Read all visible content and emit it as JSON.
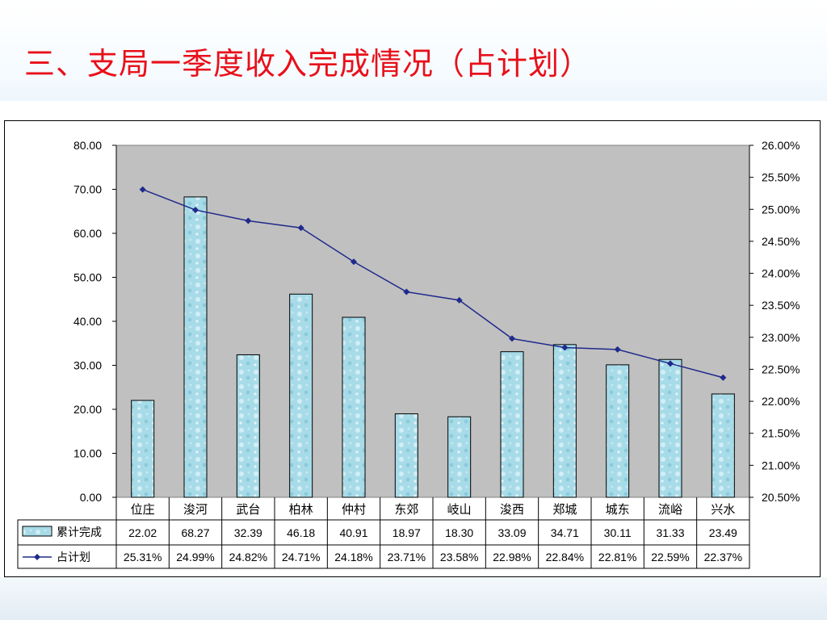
{
  "slide": {
    "title": "三、支局一季度收入完成情况（占计划）"
  },
  "chart_data": {
    "type": "bar+line",
    "categories": [
      "位庄",
      "浚河",
      "武台",
      "柏林",
      "仲村",
      "东郊",
      "岐山",
      "浚西",
      "郑城",
      "城东",
      "流峪",
      "兴水"
    ],
    "series": [
      {
        "name": "累计完成",
        "type": "bar",
        "axis": "left",
        "values": [
          22.02,
          68.27,
          32.39,
          46.18,
          40.91,
          18.97,
          18.3,
          33.09,
          34.71,
          30.11,
          31.33,
          23.49
        ],
        "labels": [
          "22.02",
          "68.27",
          "32.39",
          "46.18",
          "40.91",
          "18.97",
          "18.30",
          "33.09",
          "34.71",
          "30.11",
          "31.33",
          "23.49"
        ],
        "color": "#a9dce8"
      },
      {
        "name": "占计划",
        "type": "line",
        "axis": "right",
        "values": [
          25.31,
          24.99,
          24.82,
          24.71,
          24.18,
          23.71,
          23.58,
          22.98,
          22.84,
          22.81,
          22.59,
          22.37
        ],
        "labels": [
          "25.31%",
          "24.99%",
          "24.82%",
          "24.71%",
          "24.18%",
          "23.71%",
          "23.58%",
          "22.98%",
          "22.84%",
          "22.81%",
          "22.59%",
          "22.37%"
        ],
        "color": "#1f2a8c"
      }
    ],
    "y_left": {
      "min": 0,
      "max": 80,
      "ticks": [
        0,
        10,
        20,
        30,
        40,
        50,
        60,
        70,
        80
      ],
      "tick_labels": [
        "0.00",
        "10.00",
        "20.00",
        "30.00",
        "40.00",
        "50.00",
        "60.00",
        "70.00",
        "80.00"
      ]
    },
    "y_right": {
      "min": 20.5,
      "max": 26.0,
      "ticks": [
        20.5,
        21.0,
        21.5,
        22.0,
        22.5,
        23.0,
        23.5,
        24.0,
        24.5,
        25.0,
        25.5,
        26.0
      ],
      "tick_labels": [
        "20.50%",
        "21.00%",
        "21.50%",
        "22.00%",
        "22.50%",
        "23.00%",
        "23.50%",
        "24.00%",
        "24.50%",
        "25.00%",
        "25.50%",
        "26.00%"
      ]
    },
    "plot_background": "#c0c0c0",
    "grid": false,
    "legend": "data-table"
  }
}
